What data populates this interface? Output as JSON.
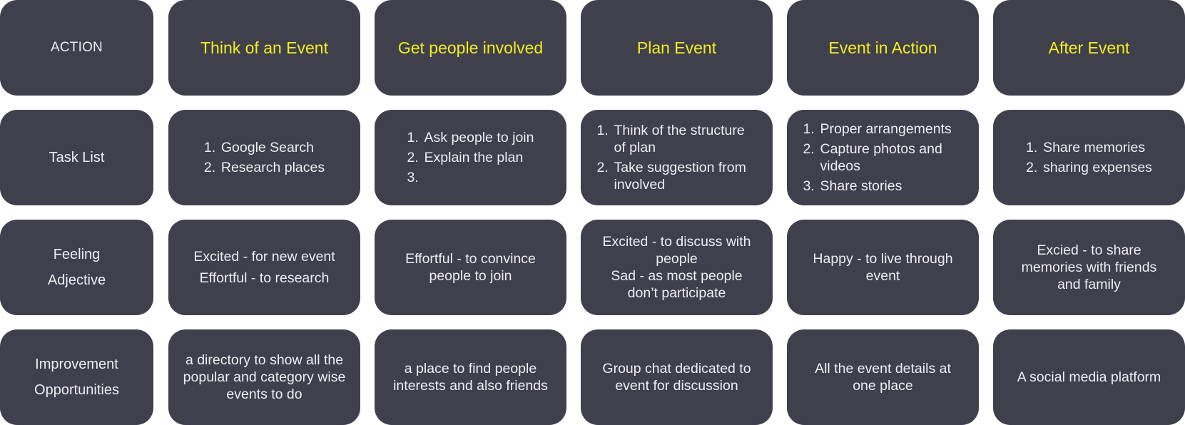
{
  "columns": [
    {
      "title": "Think of an Event",
      "tasks": [
        "Google Search",
        "Research places"
      ],
      "feeling": [
        "Excited - for new event",
        "Effortful - to research"
      ],
      "improvement": "a directory to show all the popular and category wise events to do"
    },
    {
      "title": "Get people involved",
      "tasks": [
        "Ask people to join",
        "Explain the plan",
        ""
      ],
      "feeling": [
        "Effortful - to convince people to join"
      ],
      "improvement": "a place to find people interests and also friends"
    },
    {
      "title": "Plan Event",
      "tasks": [
        "Think of the structure of plan",
        "Take suggestion from involved"
      ],
      "feeling": [
        "Excited - to discuss with people",
        "Sad - as most people don’t participate"
      ],
      "improvement": "Group chat dedicated to event for discussion"
    },
    {
      "title": "Event in Action",
      "tasks": [
        "Proper arrangements",
        "Capture photos and videos",
        "Share stories"
      ],
      "feeling": [
        "Happy - to live through event"
      ],
      "improvement": "All the event details at one place"
    },
    {
      "title": "After Event",
      "tasks": [
        "Share memories",
        "sharing expenses"
      ],
      "feeling": [
        "Excied - to share memories with friends and family"
      ],
      "improvement": "A social media platform"
    }
  ],
  "row_labels": {
    "action": "ACTION",
    "task_list": "Task List",
    "feeling_line1": "Feeling",
    "feeling_line2": "Adjective",
    "improvement_line1": "Improvement",
    "improvement_line2": "Opportunities"
  },
  "list_numbers": [
    "1.",
    "2.",
    "3."
  ],
  "colors": {
    "card_bg": "#40404c",
    "title_text": "#f1ec20",
    "body_text": "#ececf1"
  }
}
